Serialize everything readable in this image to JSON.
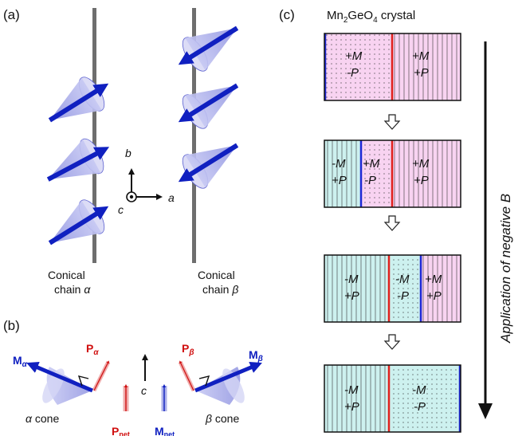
{
  "panels": {
    "a": {
      "label": "(a)",
      "chain_alpha": {
        "line1": "Conical",
        "line2_prefix": "chain ",
        "symbol": "α"
      },
      "chain_beta": {
        "line1": "Conical",
        "line2_prefix": "chain ",
        "symbol": "β"
      },
      "axes": {
        "b": "b",
        "a": "a",
        "c": "c"
      }
    },
    "b": {
      "label": "(b)",
      "M_alpha": {
        "main": "M",
        "sub": "α"
      },
      "P_alpha": {
        "main": "P",
        "sub": "α"
      },
      "P_beta": {
        "main": "P",
        "sub": "β"
      },
      "M_beta": {
        "main": "M",
        "sub": "β"
      },
      "c_axis": "c",
      "alpha_cone": {
        "symbol": "α",
        "text": " cone"
      },
      "beta_cone": {
        "symbol": "β",
        "text": " cone"
      },
      "P_net": {
        "main": "P",
        "sub": "net"
      },
      "M_net": {
        "main": "M",
        "sub": "net"
      }
    },
    "c": {
      "label": "(c)",
      "title": {
        "p1": "Mn",
        "s1": "2",
        "p2": "GeO",
        "s2": "4",
        "p3": " crystal"
      },
      "side_label": "Application of negative B",
      "states": [
        {
          "domains": [
            {
              "m": "+M",
              "p": "-P"
            },
            {
              "m": "+M",
              "p": "+P"
            }
          ]
        },
        {
          "domains": [
            {
              "m": "-M",
              "p": "+P"
            },
            {
              "m": "+M",
              "p": "-P"
            },
            {
              "m": "+M",
              "p": "+P"
            }
          ]
        },
        {
          "domains": [
            {
              "m": "-M",
              "p": "+P"
            },
            {
              "m": "-M",
              "p": "-P"
            },
            {
              "m": "+M",
              "p": "+P"
            }
          ]
        },
        {
          "domains": [
            {
              "m": "-M",
              "p": "+P"
            },
            {
              "m": "-M",
              "p": "-P"
            }
          ]
        }
      ]
    }
  },
  "colors": {
    "pink": "#f8d3f1",
    "cyan": "#cdf1ef",
    "red_wall": "#e0201c",
    "blue_wall": "#1d28d6",
    "arrow_blue": "#1020c0",
    "arrow_red": "#d01010",
    "cone": "#a7aaea"
  }
}
